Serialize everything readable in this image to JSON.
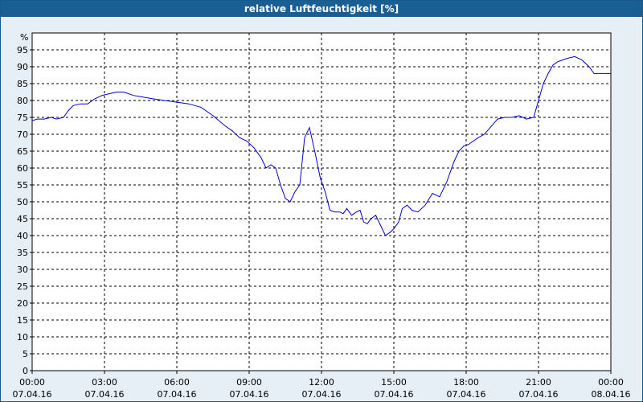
{
  "window": {
    "title": "relative Luftfeuchtigkeit [%]"
  },
  "chart_data": {
    "type": "line",
    "title": "relative Luftfeuchtigkeit [%]",
    "ylabel": "%",
    "xlabel": "",
    "ylim": [
      0,
      100
    ],
    "y_ticks": [
      0,
      5,
      10,
      15,
      20,
      25,
      30,
      35,
      40,
      45,
      50,
      55,
      60,
      65,
      70,
      75,
      80,
      85,
      90,
      95
    ],
    "x_range_hours": [
      0,
      24
    ],
    "x_ticks": [
      {
        "time": "00:00",
        "date": "07.04.16"
      },
      {
        "time": "03:00",
        "date": "07.04.16"
      },
      {
        "time": "06:00",
        "date": "07.04.16"
      },
      {
        "time": "09:00",
        "date": "07.04.16"
      },
      {
        "time": "12:00",
        "date": "07.04.16"
      },
      {
        "time": "15:00",
        "date": "07.04.16"
      },
      {
        "time": "18:00",
        "date": "07.04.16"
      },
      {
        "time": "21:00",
        "date": "07.04.16"
      },
      {
        "time": "00:00",
        "date": "08.04.16"
      }
    ],
    "grid": true,
    "line_color": "#0000cc",
    "series": [
      {
        "x": [
          0.0,
          0.2,
          0.5,
          0.8,
          1.0,
          1.3,
          1.5,
          1.7,
          2.0,
          2.3,
          2.6,
          2.9,
          3.2,
          3.5,
          3.8,
          4.2,
          4.6,
          5.0,
          5.5,
          6.0,
          6.5,
          7.0,
          7.5,
          8.0,
          8.3,
          8.6,
          8.9,
          9.2,
          9.5,
          9.7,
          9.9,
          10.1,
          10.3,
          10.5,
          10.7,
          10.9,
          11.1,
          11.3,
          11.5,
          11.75,
          11.95,
          12.15,
          12.35,
          12.55,
          12.75,
          12.9,
          13.05,
          13.25,
          13.45,
          13.6,
          13.75,
          13.9,
          14.05,
          14.25,
          14.45,
          14.65,
          14.85,
          15.0,
          15.2,
          15.35,
          15.55,
          15.75,
          16.0,
          16.3,
          16.6,
          16.9,
          17.2,
          17.5,
          17.7,
          17.9,
          18.1,
          18.3,
          18.5,
          18.75,
          19.0,
          19.3,
          19.6,
          19.9,
          20.2,
          20.5,
          20.8,
          21.0,
          21.2,
          21.4,
          21.6,
          21.8,
          22.0,
          22.2,
          22.5,
          22.8,
          23.1,
          23.3,
          23.5,
          23.7,
          23.85,
          24.0
        ],
        "y": [
          74,
          74.5,
          74.5,
          75,
          74.5,
          75,
          77,
          78.5,
          79,
          79,
          80.5,
          81.5,
          82,
          82.5,
          82.5,
          81.5,
          81,
          80.5,
          80,
          79.5,
          79,
          78,
          75.5,
          72.5,
          71,
          69,
          68,
          66,
          63,
          60,
          61,
          60,
          55,
          51,
          50,
          53,
          55,
          69,
          72,
          64,
          57,
          53,
          47.5,
          47,
          47,
          46.5,
          48,
          46,
          47,
          47.5,
          44,
          43.5,
          45,
          46,
          43,
          40,
          41,
          42,
          44,
          48,
          49,
          47.5,
          47,
          49,
          52.5,
          51.5,
          56,
          62,
          65,
          66.5,
          67,
          68,
          69,
          70,
          72,
          74.5,
          75,
          75,
          75.5,
          74.5,
          75,
          80,
          85,
          88,
          90.5,
          91.5,
          92,
          92.5,
          93,
          92,
          90,
          88,
          88,
          88,
          88,
          88
        ]
      }
    ]
  }
}
